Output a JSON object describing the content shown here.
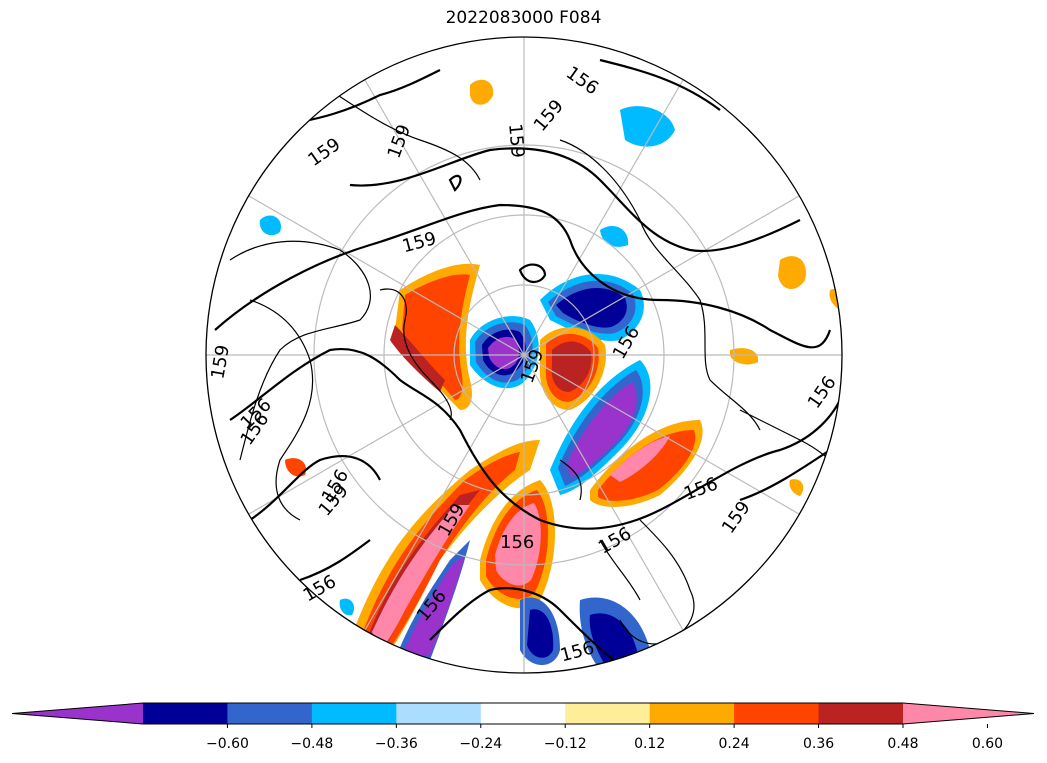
{
  "title": "2022083000 F084",
  "colorbar": {
    "colors": [
      "#9933cc",
      "#000099",
      "#3366cc",
      "#00bbff",
      "#aaddff",
      "#ffffff",
      "#ffee99",
      "#ffaa00",
      "#ff4400",
      "#bb2222",
      "#ff88aa"
    ],
    "ticks": [
      "−0.60",
      "−0.48",
      "−0.36",
      "−0.24",
      "−0.12",
      "0.12",
      "0.24",
      "0.36",
      "0.48",
      "0.60"
    ]
  },
  "contour_labels": [
    "159",
    "159",
    "159",
    "159",
    "159",
    "159",
    "156",
    "156",
    "156",
    "156",
    "156",
    "156",
    "156",
    "156",
    "159",
    "156",
    "159",
    "156",
    "159",
    "159",
    "156",
    "156"
  ]
}
